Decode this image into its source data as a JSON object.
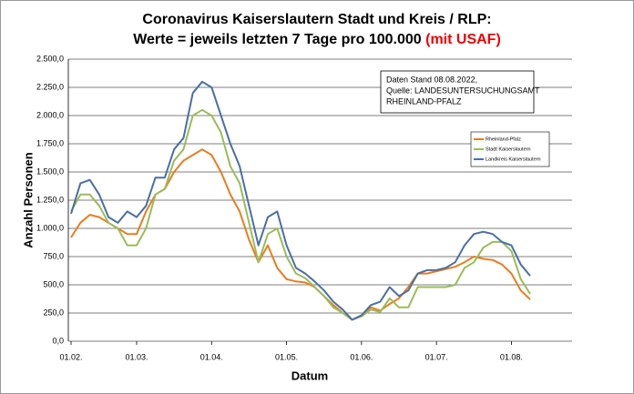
{
  "chart_data": {
    "type": "line",
    "title_line1": "Coronavirus Kaiserslautern Stadt und Kreis / RLP:",
    "title_line2": "Werte = jeweils letzten 7 Tage pro 100.000",
    "title_highlight": "(mit USAF)",
    "annotation": [
      "Daten Stand 08.08.2022,",
      "Quelle: LANDESUNTERSUCHUNGSAMT",
      "RHEINLAND-PFALZ"
    ],
    "x_label": "Datum",
    "y_label": "Anzahl Personen",
    "categories": [
      "01.02.",
      null,
      null,
      null,
      null,
      null,
      null,
      "01.03.",
      null,
      null,
      null,
      null,
      null,
      null,
      null,
      "01.04.",
      null,
      null,
      null,
      null,
      null,
      null,
      null,
      "01.05.",
      null,
      null,
      null,
      null,
      null,
      null,
      null,
      "01.06.",
      null,
      null,
      null,
      null,
      null,
      null,
      null,
      "01.07.",
      null,
      null,
      null,
      null,
      null,
      null,
      null,
      "01.08.",
      null,
      null
    ],
    "series": [
      {
        "name": "Rheinland-Pfalz",
        "color": "#e87d1e",
        "values": [
          920,
          1050,
          1120,
          1100,
          1050,
          1000,
          950,
          950,
          1150,
          1300,
          1350,
          1500,
          1600,
          1650,
          1700,
          1650,
          1500,
          1300,
          1150,
          900,
          700,
          850,
          650,
          550,
          530,
          520,
          480,
          400,
          320,
          250,
          190,
          230,
          300,
          270,
          330,
          380,
          480,
          600,
          600,
          620,
          640,
          660,
          700,
          750,
          730,
          720,
          680,
          600,
          450,
          370
        ]
      },
      {
        "name": "Stadt Kaiserslautern",
        "color": "#9bbb59",
        "values": [
          1150,
          1300,
          1300,
          1200,
          1050,
          1000,
          850,
          850,
          1000,
          1300,
          1350,
          1600,
          1700,
          2000,
          2050,
          2000,
          1850,
          1550,
          1400,
          1050,
          700,
          950,
          1000,
          750,
          600,
          560,
          480,
          400,
          300,
          250,
          190,
          220,
          280,
          260,
          380,
          300,
          300,
          480,
          480,
          480,
          480,
          500,
          650,
          700,
          830,
          880,
          880,
          800,
          550,
          420
        ]
      },
      {
        "name": "Landkreis Kaiserslautern",
        "color": "#4a6fa5",
        "values": [
          1130,
          1400,
          1430,
          1300,
          1100,
          1050,
          1150,
          1100,
          1200,
          1450,
          1450,
          1700,
          1800,
          2200,
          2300,
          2250,
          2000,
          1750,
          1550,
          1200,
          850,
          1100,
          1150,
          850,
          650,
          600,
          530,
          450,
          350,
          280,
          190,
          230,
          320,
          350,
          480,
          400,
          450,
          600,
          630,
          630,
          650,
          700,
          850,
          950,
          970,
          950,
          880,
          850,
          680,
          580
        ]
      }
    ],
    "ylim": [
      0,
      2500
    ],
    "yticks": [
      {
        "value": 0,
        "label": "0,0"
      },
      {
        "value": 250,
        "label": "250,0"
      },
      {
        "value": 500,
        "label": "500,0"
      },
      {
        "value": 750,
        "label": "750,0"
      },
      {
        "value": 1000,
        "label": "1.000,0"
      },
      {
        "value": 1250,
        "label": "1.250,0"
      },
      {
        "value": 1500,
        "label": "1.500,0"
      },
      {
        "value": 1750,
        "label": "1.750,0"
      },
      {
        "value": 2000,
        "label": "2.000,0"
      },
      {
        "value": 2250,
        "label": "2.250,0"
      },
      {
        "value": 2500,
        "label": "2.500,0"
      }
    ],
    "grid": true,
    "legend": "upper right"
  }
}
